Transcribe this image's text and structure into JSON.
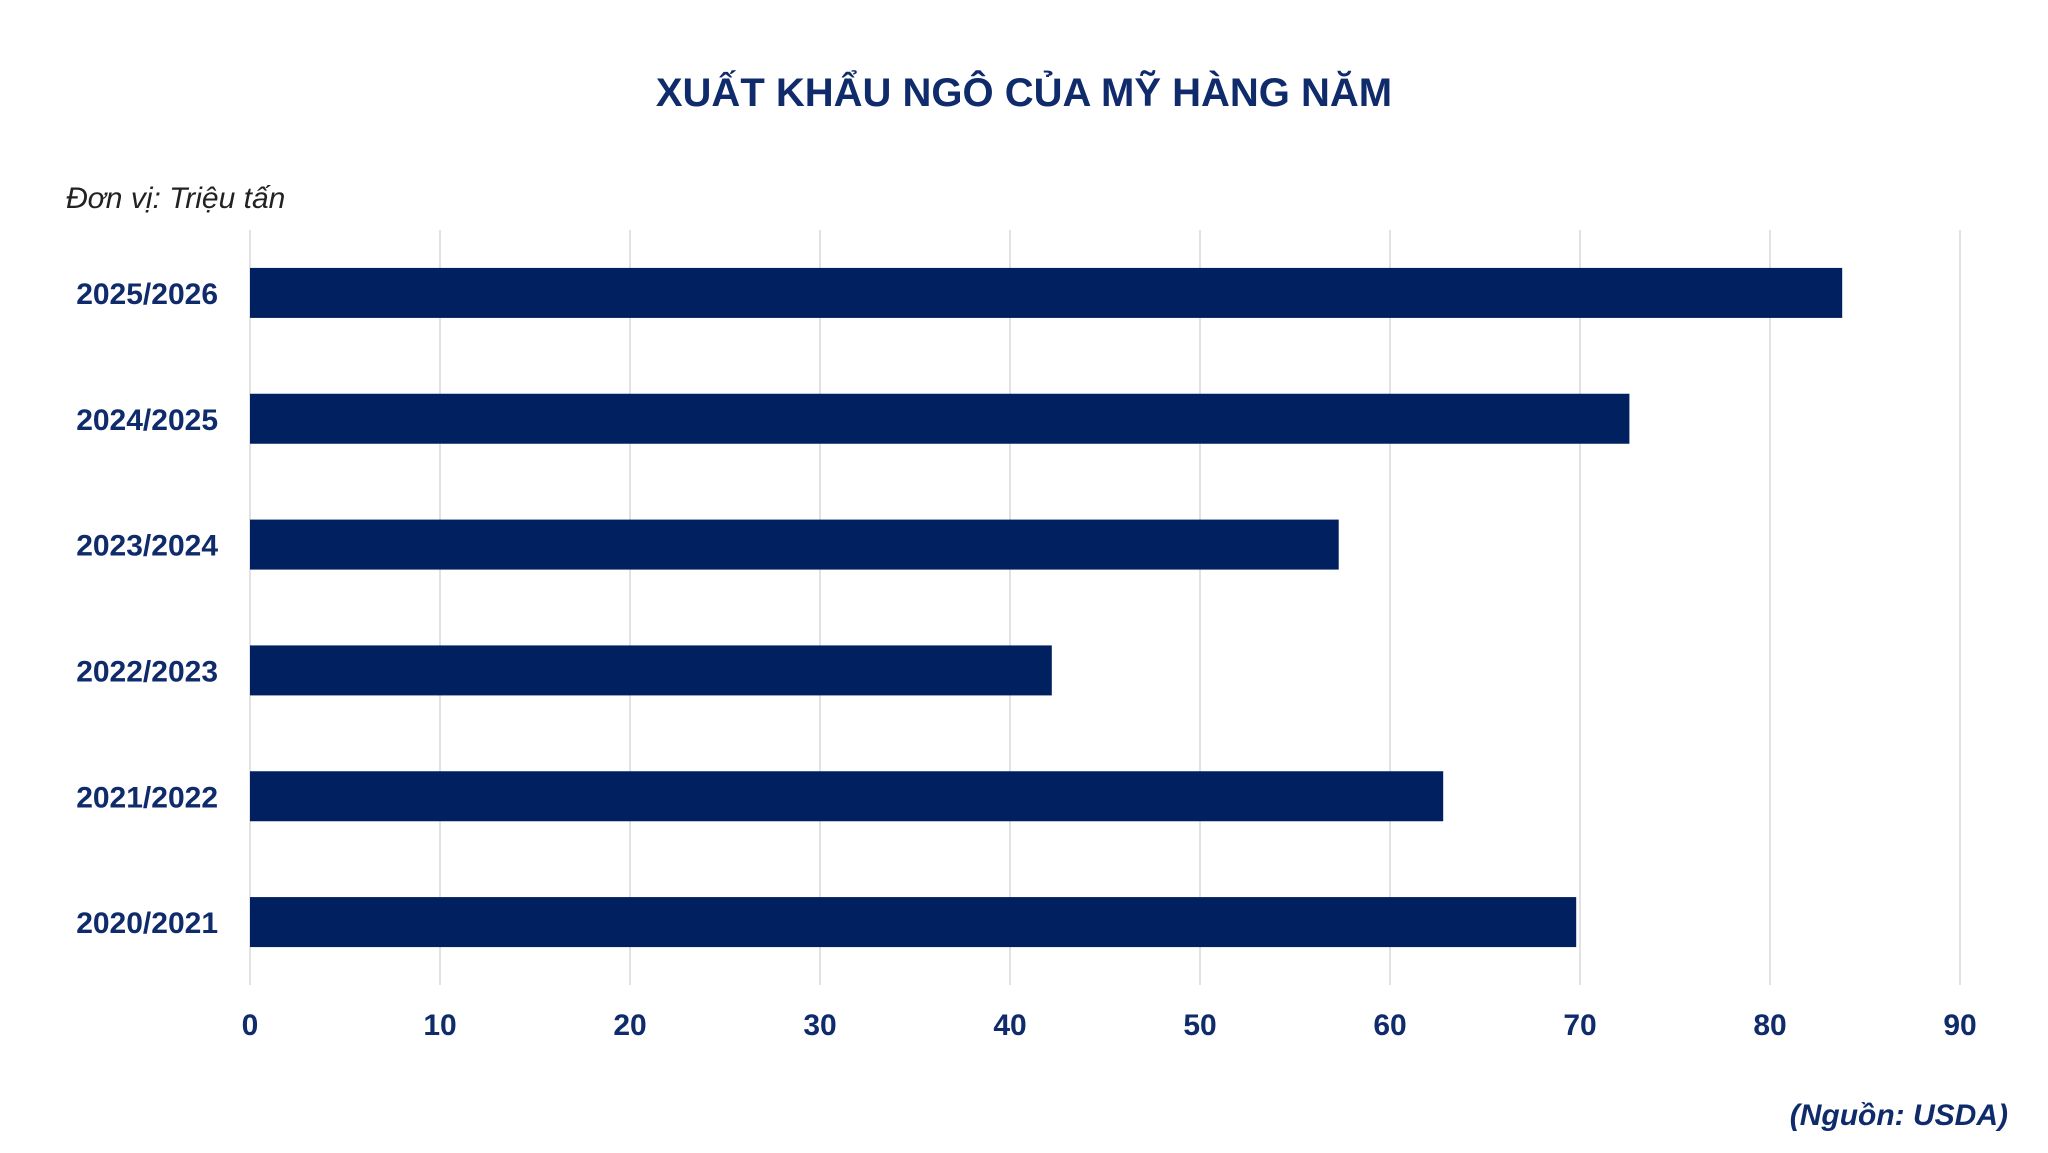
{
  "chart_data": {
    "type": "bar",
    "orientation": "horizontal",
    "title": "XUẤT KHẨU NGÔ CỦA MỸ HÀNG NĂM",
    "unit_label": "Đơn vị: Triệu tấn",
    "source_label": "(Nguồn: USDA)",
    "categories": [
      "2025/2026",
      "2024/2025",
      "2023/2024",
      "2022/2023",
      "2021/2022",
      "2020/2021"
    ],
    "values": [
      83.8,
      72.6,
      57.3,
      42.2,
      62.8,
      69.8
    ],
    "xlim": [
      0,
      90
    ],
    "xticks": [
      0,
      10,
      20,
      30,
      40,
      50,
      60,
      70,
      80,
      90
    ],
    "grid": "vertical",
    "bar_color": "#00205f",
    "text_color": "#0f2b6b"
  }
}
